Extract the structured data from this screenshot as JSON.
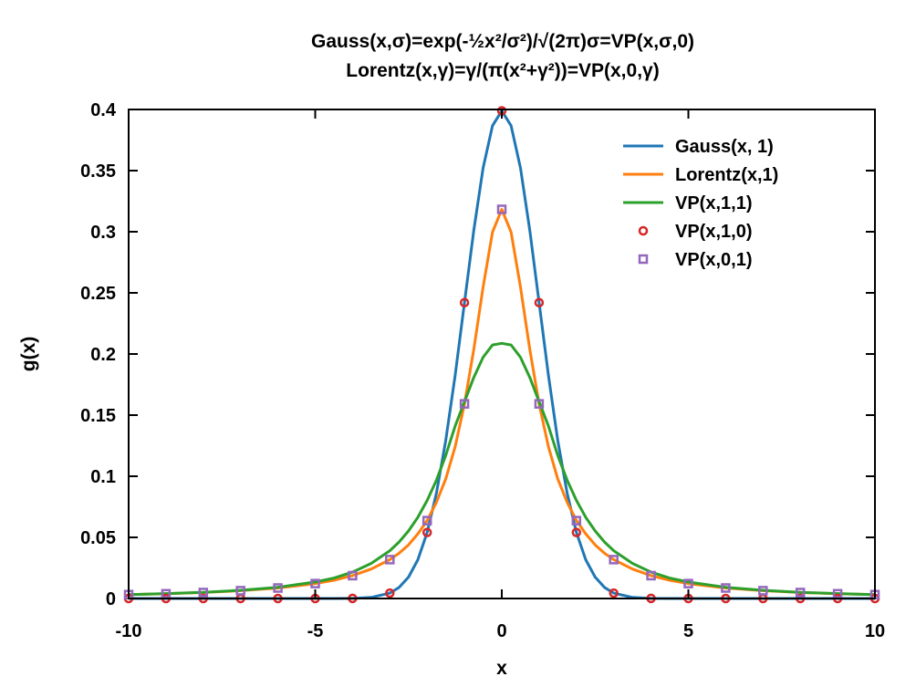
{
  "chart_data": {
    "type": "line",
    "title_line1": "Gauss(x,σ)=exp(-½x²/σ²)/√(2π)σ=VP(x,σ,0)",
    "title_line2": "Lorentz(x,γ)=γ/(π(x²+γ²))=VP(x,0,γ)",
    "xlabel": "x",
    "ylabel": "g(x)",
    "xlim": [
      -10,
      10
    ],
    "ylim": [
      0,
      0.4
    ],
    "x_ticks": [
      -10,
      -5,
      0,
      5,
      10
    ],
    "x_tick_labels": [
      "-10",
      "-5",
      "0",
      "5",
      "10"
    ],
    "y_ticks": [
      0,
      0.05,
      0.1,
      0.15,
      0.2,
      0.25,
      0.3,
      0.35,
      0.4
    ],
    "y_tick_labels": [
      "0",
      "0.05",
      "0.1",
      "0.15",
      "0.2",
      "0.25",
      "0.3",
      "0.35",
      "0.4"
    ],
    "legend_position": "top-right",
    "grid": false,
    "series": [
      {
        "name": "Gauss(x, 1)",
        "style": "line",
        "color": "#1f77b4",
        "x": [
          -10,
          -9,
          -8,
          -7,
          -6,
          -5,
          -4.5,
          -4,
          -3.5,
          -3,
          -2.75,
          -2.5,
          -2.25,
          -2,
          -1.75,
          -1.5,
          -1.25,
          -1,
          -0.75,
          -0.5,
          -0.25,
          0,
          0.25,
          0.5,
          0.75,
          1,
          1.25,
          1.5,
          1.75,
          2,
          2.25,
          2.5,
          2.75,
          3,
          3.5,
          4,
          4.5,
          5,
          6,
          7,
          8,
          9,
          10
        ],
        "y": [
          0,
          0,
          0,
          0,
          0,
          0,
          0,
          0.0001,
          0.0009,
          0.0044,
          0.0091,
          0.0175,
          0.0317,
          0.054,
          0.0863,
          0.1295,
          0.1826,
          0.242,
          0.3011,
          0.3521,
          0.3867,
          0.3989,
          0.3867,
          0.3521,
          0.3011,
          0.242,
          0.1826,
          0.1295,
          0.0863,
          0.054,
          0.0317,
          0.0175,
          0.0091,
          0.0044,
          0.0009,
          0.0001,
          0,
          0,
          0,
          0,
          0,
          0,
          0
        ]
      },
      {
        "name": "Lorentz(x,1)",
        "style": "line",
        "color": "#ff7f0e",
        "x": [
          -10,
          -9,
          -8,
          -7,
          -6,
          -5,
          -4.5,
          -4,
          -3.5,
          -3,
          -2.75,
          -2.5,
          -2.25,
          -2,
          -1.75,
          -1.5,
          -1.25,
          -1,
          -0.75,
          -0.5,
          -0.25,
          0,
          0.25,
          0.5,
          0.75,
          1,
          1.25,
          1.5,
          1.75,
          2,
          2.25,
          2.5,
          2.75,
          3,
          3.5,
          4,
          4.5,
          5,
          6,
          7,
          8,
          9,
          10
        ],
        "y": [
          0.0032,
          0.0039,
          0.0049,
          0.0064,
          0.0086,
          0.0122,
          0.0149,
          0.0187,
          0.0241,
          0.0318,
          0.0371,
          0.0439,
          0.0529,
          0.0637,
          0.0788,
          0.0979,
          0.1242,
          0.1592,
          0.2037,
          0.2546,
          0.2996,
          0.3183,
          0.2996,
          0.2546,
          0.2037,
          0.1592,
          0.1242,
          0.0979,
          0.0788,
          0.0637,
          0.0529,
          0.0439,
          0.0371,
          0.0318,
          0.0241,
          0.0187,
          0.0149,
          0.0122,
          0.0086,
          0.0064,
          0.0049,
          0.0039,
          0.0032
        ]
      },
      {
        "name": "VP(x,1,1)",
        "style": "line",
        "color": "#2ca02c",
        "x": [
          -10,
          -9,
          -8,
          -7,
          -6,
          -5,
          -4.5,
          -4,
          -3.5,
          -3,
          -2.75,
          -2.5,
          -2.25,
          -2,
          -1.75,
          -1.5,
          -1.25,
          -1,
          -0.75,
          -0.5,
          -0.25,
          0,
          0.25,
          0.5,
          0.75,
          1,
          1.25,
          1.5,
          1.75,
          2,
          2.25,
          2.5,
          2.75,
          3,
          3.5,
          4,
          4.5,
          5,
          6,
          7,
          8,
          9,
          10
        ],
        "y": [
          0.0032,
          0.004,
          0.005,
          0.0067,
          0.0092,
          0.0135,
          0.0167,
          0.0216,
          0.0287,
          0.0391,
          0.0463,
          0.0553,
          0.0664,
          0.0802,
          0.0969,
          0.1171,
          0.1411,
          0.161,
          0.1808,
          0.1973,
          0.2074,
          0.2087,
          0.2074,
          0.1973,
          0.1808,
          0.161,
          0.1411,
          0.1171,
          0.0969,
          0.0802,
          0.0664,
          0.0553,
          0.0463,
          0.0391,
          0.0287,
          0.0216,
          0.0167,
          0.0135,
          0.0092,
          0.0067,
          0.005,
          0.004,
          0.0032
        ]
      },
      {
        "name": "VP(x,1,0)",
        "style": "markers-circle",
        "color": "#d62728",
        "x": [
          -10,
          -9,
          -8,
          -7,
          -6,
          -5,
          -4,
          -3,
          -2,
          -1,
          0,
          1,
          2,
          3,
          4,
          5,
          6,
          7,
          8,
          9,
          10
        ],
        "y": [
          0,
          0,
          0,
          0,
          0,
          0,
          0.0001,
          0.0044,
          0.054,
          0.242,
          0.3989,
          0.242,
          0.054,
          0.0044,
          0.0001,
          0,
          0,
          0,
          0,
          0,
          0
        ]
      },
      {
        "name": "VP(x,0,1)",
        "style": "markers-square",
        "color": "#9467bd",
        "x": [
          -10,
          -9,
          -8,
          -7,
          -6,
          -5,
          -4,
          -3,
          -2,
          -1,
          0,
          1,
          2,
          3,
          4,
          5,
          6,
          7,
          8,
          9,
          10
        ],
        "y": [
          0.0032,
          0.0039,
          0.0049,
          0.0064,
          0.0086,
          0.0122,
          0.0187,
          0.0318,
          0.0637,
          0.1592,
          0.3183,
          0.1592,
          0.0637,
          0.0318,
          0.0187,
          0.0122,
          0.0086,
          0.0064,
          0.0049,
          0.0039,
          0.0032
        ]
      }
    ]
  }
}
